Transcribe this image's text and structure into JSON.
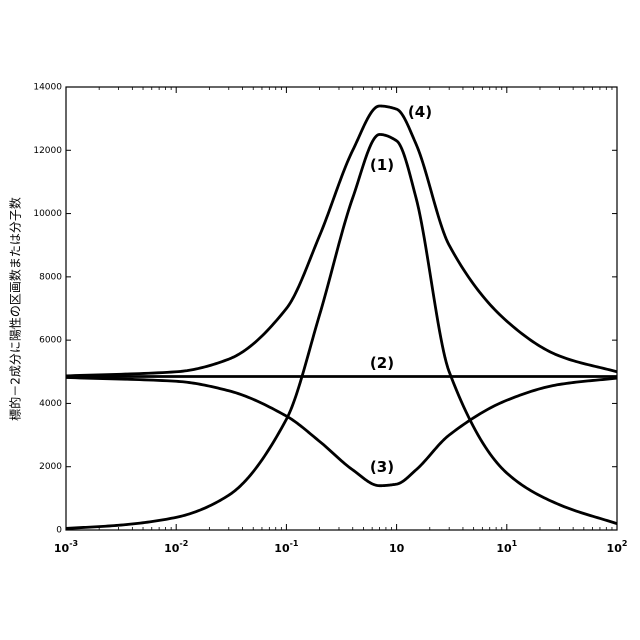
{
  "chart_data": {
    "type": "line",
    "ylabel": "標的－2成分に陽性の区画数または分子数",
    "xlabel": "",
    "title": "",
    "xscale": "log",
    "xlim": [
      0.001,
      100
    ],
    "ylim": [
      0,
      14000
    ],
    "x_ticks": [
      {
        "base": "10",
        "exp": "-3"
      },
      {
        "base": "10",
        "exp": "-2"
      },
      {
        "base": "10",
        "exp": "-1"
      },
      {
        "base": "10",
        "exp": ""
      },
      {
        "base": "10",
        "exp": "1"
      },
      {
        "base": "10",
        "exp": "2"
      }
    ],
    "y_ticks": [
      "0",
      "2000",
      "4000",
      "6000",
      "8000",
      "10000",
      "12000",
      "14000"
    ],
    "grid": false,
    "series": [
      {
        "name": "(1)",
        "x": [
          0.001,
          0.003,
          0.01,
          0.03,
          0.1,
          0.2,
          0.4,
          0.7,
          1,
          1.5,
          3,
          10,
          30,
          100
        ],
        "y": [
          50,
          150,
          400,
          1100,
          3500,
          6800,
          10500,
          12500,
          12300,
          10500,
          5000,
          1800,
          800,
          200
        ]
      },
      {
        "name": "(2)",
        "x": [
          0.001,
          0.01,
          0.1,
          1,
          10,
          100
        ],
        "y": [
          4850,
          4850,
          4850,
          4850,
          4850,
          4850
        ]
      },
      {
        "name": "(3)",
        "x": [
          0.001,
          0.01,
          0.03,
          0.1,
          0.2,
          0.4,
          0.7,
          1,
          1.5,
          3,
          10,
          30,
          100
        ],
        "y": [
          4820,
          4700,
          4400,
          3600,
          2800,
          1900,
          1400,
          1450,
          1900,
          3000,
          4100,
          4600,
          4800
        ]
      },
      {
        "name": "(4)",
        "x": [
          0.001,
          0.01,
          0.03,
          0.1,
          0.2,
          0.4,
          0.7,
          1,
          1.5,
          3,
          10,
          30,
          100
        ],
        "y": [
          4870,
          5000,
          5400,
          7000,
          9300,
          12000,
          13400,
          13300,
          12200,
          9000,
          6600,
          5500,
          5000
        ]
      }
    ]
  }
}
